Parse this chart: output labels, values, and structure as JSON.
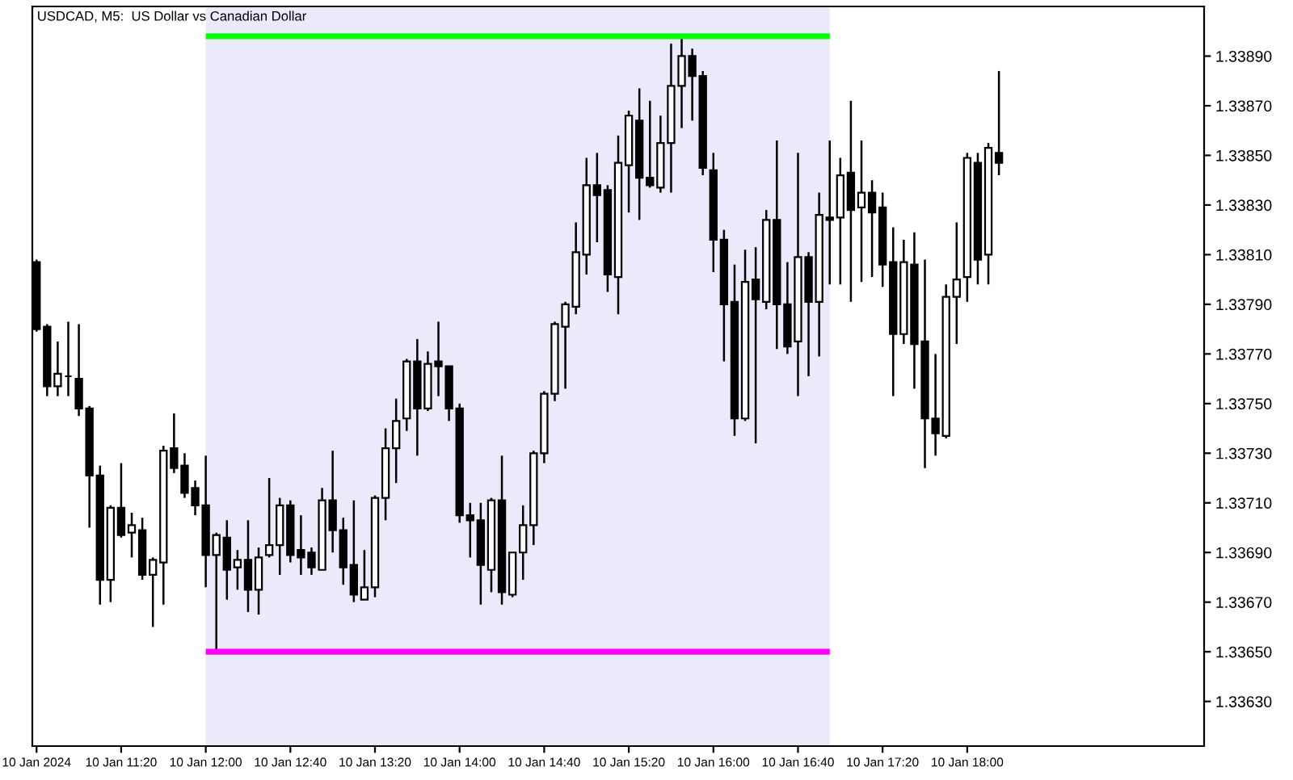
{
  "chart_data": {
    "type": "candlestick",
    "title": "USDCAD, M5:  US Dollar vs Canadian Dollar",
    "xlim": [
      "2024-01-10T10:38",
      "2024-01-10T19:52"
    ],
    "ylim": [
      1.33612,
      1.3391
    ],
    "xticks": [
      {
        "value": "2024-01-10T10:40",
        "label": "10 Jan 2024"
      },
      {
        "value": "2024-01-10T11:20",
        "label": "10 Jan 11:20"
      },
      {
        "value": "2024-01-10T12:00",
        "label": "10 Jan 12:00"
      },
      {
        "value": "2024-01-10T12:40",
        "label": "10 Jan 12:40"
      },
      {
        "value": "2024-01-10T13:20",
        "label": "10 Jan 13:20"
      },
      {
        "value": "2024-01-10T14:00",
        "label": "10 Jan 14:00"
      },
      {
        "value": "2024-01-10T14:40",
        "label": "10 Jan 14:40"
      },
      {
        "value": "2024-01-10T15:20",
        "label": "10 Jan 15:20"
      },
      {
        "value": "2024-01-10T16:00",
        "label": "10 Jan 16:00"
      },
      {
        "value": "2024-01-10T16:40",
        "label": "10 Jan 16:40"
      },
      {
        "value": "2024-01-10T17:20",
        "label": "10 Jan 17:20"
      },
      {
        "value": "2024-01-10T18:00",
        "label": "10 Jan 18:00"
      }
    ],
    "yticks": [
      {
        "value": 1.3363,
        "label": "1.33630"
      },
      {
        "value": 1.3365,
        "label": "1.33650"
      },
      {
        "value": 1.3367,
        "label": "1.33670"
      },
      {
        "value": 1.3369,
        "label": "1.33690"
      },
      {
        "value": 1.3371,
        "label": "1.33710"
      },
      {
        "value": 1.3373,
        "label": "1.33730"
      },
      {
        "value": 1.3375,
        "label": "1.33750"
      },
      {
        "value": 1.3377,
        "label": "1.33770"
      },
      {
        "value": 1.3379,
        "label": "1.33790"
      },
      {
        "value": 1.3381,
        "label": "1.33810"
      },
      {
        "value": 1.3383,
        "label": "1.33830"
      },
      {
        "value": 1.3385,
        "label": "1.33850"
      },
      {
        "value": 1.3387,
        "label": "1.33870"
      },
      {
        "value": 1.3389,
        "label": "1.33890"
      }
    ],
    "bands": [
      {
        "axis": "x",
        "from": "2024-01-10T12:00",
        "to": "2024-01-10T16:55",
        "color": "#eaeafa"
      }
    ],
    "series": [
      {
        "type": "line",
        "color": "#00ff00",
        "x": [
          "2024-01-10T12:00",
          "2024-01-10T16:55"
        ],
        "values": [
          1.33898,
          1.33898
        ]
      },
      {
        "type": "line",
        "color": "#ff00ff",
        "x": [
          "2024-01-10T12:00",
          "2024-01-10T16:55"
        ],
        "values": [
          1.3365,
          1.3365
        ]
      },
      {
        "color": "#000000",
        "x": [
          "2024-01-10T10:40",
          "2024-01-10T10:45",
          "2024-01-10T10:50",
          "2024-01-10T10:55",
          "2024-01-10T11:00",
          "2024-01-10T11:05",
          "2024-01-10T11:10",
          "2024-01-10T11:15",
          "2024-01-10T11:20",
          "2024-01-10T11:25",
          "2024-01-10T11:30",
          "2024-01-10T11:35",
          "2024-01-10T11:40",
          "2024-01-10T11:45",
          "2024-01-10T11:50",
          "2024-01-10T11:55",
          "2024-01-10T12:00",
          "2024-01-10T12:05",
          "2024-01-10T12:10",
          "2024-01-10T12:15",
          "2024-01-10T12:20",
          "2024-01-10T12:25",
          "2024-01-10T12:30",
          "2024-01-10T12:35",
          "2024-01-10T12:40",
          "2024-01-10T12:45",
          "2024-01-10T12:50",
          "2024-01-10T12:55",
          "2024-01-10T13:00",
          "2024-01-10T13:05",
          "2024-01-10T13:10",
          "2024-01-10T13:15",
          "2024-01-10T13:20",
          "2024-01-10T13:25",
          "2024-01-10T13:30",
          "2024-01-10T13:35",
          "2024-01-10T13:40",
          "2024-01-10T13:45",
          "2024-01-10T13:50",
          "2024-01-10T13:55",
          "2024-01-10T14:00",
          "2024-01-10T14:05",
          "2024-01-10T14:10",
          "2024-01-10T14:15",
          "2024-01-10T14:20",
          "2024-01-10T14:25",
          "2024-01-10T14:30",
          "2024-01-10T14:35",
          "2024-01-10T14:40",
          "2024-01-10T14:45",
          "2024-01-10T14:50",
          "2024-01-10T14:55",
          "2024-01-10T15:00",
          "2024-01-10T15:05",
          "2024-01-10T15:10",
          "2024-01-10T15:15",
          "2024-01-10T15:20",
          "2024-01-10T15:25",
          "2024-01-10T15:30",
          "2024-01-10T15:35",
          "2024-01-10T15:40",
          "2024-01-10T15:45",
          "2024-01-10T15:50",
          "2024-01-10T15:55",
          "2024-01-10T16:00",
          "2024-01-10T16:05",
          "2024-01-10T16:10",
          "2024-01-10T16:15",
          "2024-01-10T16:20",
          "2024-01-10T16:25",
          "2024-01-10T16:30",
          "2024-01-10T16:35",
          "2024-01-10T16:40",
          "2024-01-10T16:45",
          "2024-01-10T16:50",
          "2024-01-10T16:55",
          "2024-01-10T17:00",
          "2024-01-10T17:05",
          "2024-01-10T17:10",
          "2024-01-10T17:15",
          "2024-01-10T17:20",
          "2024-01-10T17:25",
          "2024-01-10T17:30",
          "2024-01-10T17:35",
          "2024-01-10T17:40",
          "2024-01-10T17:45",
          "2024-01-10T17:50",
          "2024-01-10T17:55",
          "2024-01-10T18:00",
          "2024-01-10T18:05",
          "2024-01-10T18:10",
          "2024-01-10T18:15"
        ],
        "ohlc": [
          [
            1.33807,
            1.33808,
            1.33779,
            1.3378
          ],
          [
            1.33781,
            1.33782,
            1.33753,
            1.33757
          ],
          [
            1.33757,
            1.33775,
            1.33753,
            1.33762
          ],
          [
            1.33761,
            1.33783,
            1.33753,
            1.33761
          ],
          [
            1.3376,
            1.33782,
            1.33745,
            1.33748
          ],
          [
            1.33748,
            1.33749,
            1.337,
            1.33721
          ],
          [
            1.33721,
            1.33725,
            1.33669,
            1.33679
          ],
          [
            1.33679,
            1.33709,
            1.3367,
            1.33708
          ],
          [
            1.33708,
            1.33726,
            1.33696,
            1.33697
          ],
          [
            1.33698,
            1.33706,
            1.33688,
            1.33701
          ],
          [
            1.33699,
            1.33704,
            1.33679,
            1.33681
          ],
          [
            1.33681,
            1.33688,
            1.3366,
            1.33687
          ],
          [
            1.33686,
            1.33733,
            1.33669,
            1.33731
          ],
          [
            1.33732,
            1.33746,
            1.33722,
            1.33724
          ],
          [
            1.33725,
            1.3373,
            1.33712,
            1.33714
          ],
          [
            1.33716,
            1.33719,
            1.33705,
            1.33709
          ],
          [
            1.33709,
            1.33729,
            1.33676,
            1.33689
          ],
          [
            1.33689,
            1.33698,
            1.3365,
            1.33697
          ],
          [
            1.33696,
            1.33703,
            1.33671,
            1.33683
          ],
          [
            1.33684,
            1.33691,
            1.33675,
            1.33687
          ],
          [
            1.33687,
            1.33703,
            1.33666,
            1.33675
          ],
          [
            1.33675,
            1.33692,
            1.33665,
            1.33688
          ],
          [
            1.33689,
            1.3372,
            1.33688,
            1.33693
          ],
          [
            1.33693,
            1.33712,
            1.33681,
            1.33709
          ],
          [
            1.33709,
            1.33711,
            1.33686,
            1.33689
          ],
          [
            1.33691,
            1.33705,
            1.33681,
            1.33688
          ],
          [
            1.3369,
            1.33692,
            1.33681,
            1.33684
          ],
          [
            1.33683,
            1.33716,
            1.33683,
            1.33711
          ],
          [
            1.33711,
            1.33731,
            1.3369,
            1.33699
          ],
          [
            1.33699,
            1.33704,
            1.33677,
            1.33684
          ],
          [
            1.33685,
            1.33711,
            1.3367,
            1.33673
          ],
          [
            1.33671,
            1.33691,
            1.33671,
            1.33676
          ],
          [
            1.33676,
            1.33713,
            1.33672,
            1.33712
          ],
          [
            1.33712,
            1.3374,
            1.33703,
            1.33732
          ],
          [
            1.33732,
            1.33752,
            1.33718,
            1.33743
          ],
          [
            1.33744,
            1.33768,
            1.33739,
            1.33767
          ],
          [
            1.33767,
            1.33776,
            1.33729,
            1.33748
          ],
          [
            1.33748,
            1.33771,
            1.33747,
            1.33766
          ],
          [
            1.33767,
            1.33783,
            1.33753,
            1.33765
          ],
          [
            1.33765,
            1.33765,
            1.33743,
            1.33748
          ],
          [
            1.33748,
            1.3375,
            1.33702,
            1.33705
          ],
          [
            1.33705,
            1.3371,
            1.33688,
            1.33703
          ],
          [
            1.33703,
            1.3371,
            1.33669,
            1.33685
          ],
          [
            1.33683,
            1.33712,
            1.33674,
            1.33711
          ],
          [
            1.33711,
            1.33729,
            1.33669,
            1.33674
          ],
          [
            1.33673,
            1.3369,
            1.33672,
            1.3369
          ],
          [
            1.3369,
            1.33709,
            1.33679,
            1.33701
          ],
          [
            1.33701,
            1.33731,
            1.33693,
            1.3373
          ],
          [
            1.3373,
            1.33755,
            1.33726,
            1.33754
          ],
          [
            1.33754,
            1.33783,
            1.33751,
            1.33782
          ],
          [
            1.33781,
            1.33791,
            1.33756,
            1.3379
          ],
          [
            1.33789,
            1.33823,
            1.33786,
            1.33811
          ],
          [
            1.3381,
            1.33849,
            1.33802,
            1.33838
          ],
          [
            1.33838,
            1.33851,
            1.33815,
            1.33834
          ],
          [
            1.33836,
            1.33838,
            1.33795,
            1.33802
          ],
          [
            1.33801,
            1.33858,
            1.33786,
            1.33847
          ],
          [
            1.33846,
            1.33868,
            1.33827,
            1.33866
          ],
          [
            1.33864,
            1.33877,
            1.33824,
            1.33841
          ],
          [
            1.33841,
            1.33872,
            1.33837,
            1.33838
          ],
          [
            1.33837,
            1.33866,
            1.33835,
            1.33855
          ],
          [
            1.33855,
            1.33895,
            1.33835,
            1.33878
          ],
          [
            1.33878,
            1.33898,
            1.33861,
            1.3389
          ],
          [
            1.3389,
            1.33893,
            1.33864,
            1.33882
          ],
          [
            1.33882,
            1.33884,
            1.33842,
            1.33845
          ],
          [
            1.33844,
            1.33851,
            1.33803,
            1.33816
          ],
          [
            1.33816,
            1.3382,
            1.33767,
            1.3379
          ],
          [
            1.33791,
            1.33806,
            1.33737,
            1.33744
          ],
          [
            1.33744,
            1.33812,
            1.33743,
            1.33799
          ],
          [
            1.338,
            1.33813,
            1.33734,
            1.33792
          ],
          [
            1.33791,
            1.33828,
            1.33788,
            1.33824
          ],
          [
            1.33824,
            1.33856,
            1.33772,
            1.3379
          ],
          [
            1.3379,
            1.33807,
            1.3377,
            1.33773
          ],
          [
            1.33775,
            1.33851,
            1.33753,
            1.33809
          ],
          [
            1.33809,
            1.33811,
            1.33761,
            1.33791
          ],
          [
            1.33791,
            1.33835,
            1.33769,
            1.33826
          ],
          [
            1.33825,
            1.33856,
            1.33798,
            1.33824
          ],
          [
            1.33825,
            1.33849,
            1.33798,
            1.33842
          ],
          [
            1.33843,
            1.33872,
            1.33791,
            1.33828
          ],
          [
            1.33829,
            1.33856,
            1.33799,
            1.33835
          ],
          [
            1.33835,
            1.3384,
            1.33801,
            1.33827
          ],
          [
            1.33829,
            1.33835,
            1.33797,
            1.33806
          ],
          [
            1.33807,
            1.33821,
            1.33753,
            1.33778
          ],
          [
            1.33778,
            1.33816,
            1.33774,
            1.33807
          ],
          [
            1.33806,
            1.33819,
            1.33756,
            1.33774
          ],
          [
            1.33775,
            1.33808,
            1.33724,
            1.33744
          ],
          [
            1.33744,
            1.3377,
            1.33729,
            1.33738
          ],
          [
            1.33737,
            1.33798,
            1.33736,
            1.33793
          ],
          [
            1.33793,
            1.33823,
            1.33774,
            1.338
          ],
          [
            1.33801,
            1.33851,
            1.33791,
            1.33849
          ],
          [
            1.33847,
            1.33851,
            1.33798,
            1.33808
          ],
          [
            1.3381,
            1.33855,
            1.33798,
            1.33853
          ],
          [
            1.33851,
            1.33884,
            1.33842,
            1.33847
          ]
        ],
        "colors": [
          "#000000",
          "#000000",
          "#ffffff",
          "#000000",
          "#000000",
          "#000000",
          "#000000",
          "#ffffff",
          "#000000",
          "#ffffff",
          "#000000",
          "#ffffff",
          "#ffffff",
          "#000000",
          "#000000",
          "#000000",
          "#000000",
          "#ffffff",
          "#000000",
          "#ffffff",
          "#000000",
          "#ffffff",
          "#ffffff",
          "#ffffff",
          "#000000",
          "#000000",
          "#000000",
          "#ffffff",
          "#000000",
          "#000000",
          "#000000",
          "#ffffff",
          "#ffffff",
          "#ffffff",
          "#ffffff",
          "#ffffff",
          "#000000",
          "#ffffff",
          "#000000",
          "#000000",
          "#000000",
          "#000000",
          "#000000",
          "#ffffff",
          "#000000",
          "#ffffff",
          "#ffffff",
          "#ffffff",
          "#ffffff",
          "#ffffff",
          "#ffffff",
          "#ffffff",
          "#ffffff",
          "#000000",
          "#000000",
          "#ffffff",
          "#ffffff",
          "#000000",
          "#000000",
          "#ffffff",
          "#ffffff",
          "#ffffff",
          "#000000",
          "#000000",
          "#000000",
          "#000000",
          "#000000",
          "#ffffff",
          "#000000",
          "#ffffff",
          "#000000",
          "#000000",
          "#ffffff",
          "#000000",
          "#ffffff",
          "#000000",
          "#ffffff",
          "#000000",
          "#ffffff",
          "#000000",
          "#000000",
          "#000000",
          "#ffffff",
          "#000000",
          "#000000",
          "#000000",
          "#ffffff",
          "#ffffff",
          "#ffffff",
          "#000000",
          "#ffffff",
          "#000000"
        ]
      }
    ]
  }
}
